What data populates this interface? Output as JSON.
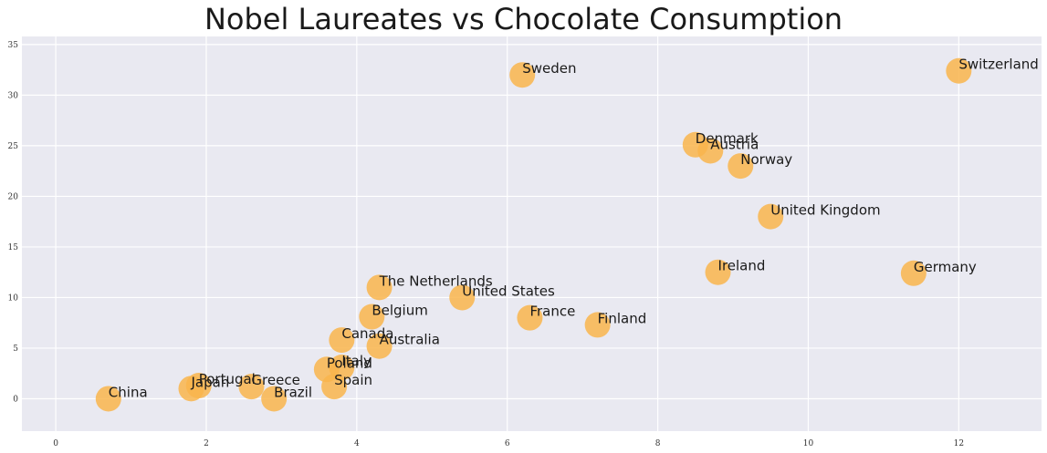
{
  "chart_data": {
    "type": "scatter",
    "title": "Nobel Laureates vs Chocolate Consumption",
    "xlabel": "",
    "ylabel": "",
    "xlim": [
      -0.45,
      13.1
    ],
    "ylim": [
      -3.2,
      35.8
    ],
    "xticks": [
      0,
      2,
      4,
      6,
      8,
      10,
      12
    ],
    "yticks": [
      0,
      5,
      10,
      15,
      20,
      25,
      30,
      35
    ],
    "grid": true,
    "marker_color": "#f9b54c",
    "background_color": "#e9e9f1",
    "grid_color": "#ffffff",
    "points": [
      {
        "label": "Switzerland",
        "x": 12.0,
        "y": 32.4
      },
      {
        "label": "Sweden",
        "x": 6.2,
        "y": 32.0
      },
      {
        "label": "Denmark",
        "x": 8.5,
        "y": 25.1
      },
      {
        "label": "Austria",
        "x": 8.7,
        "y": 24.5
      },
      {
        "label": "Norway",
        "x": 9.1,
        "y": 23.0
      },
      {
        "label": "United Kingdom",
        "x": 9.5,
        "y": 18.0
      },
      {
        "label": "Ireland",
        "x": 8.8,
        "y": 12.5
      },
      {
        "label": "Germany",
        "x": 11.4,
        "y": 12.4
      },
      {
        "label": "The Netherlands",
        "x": 4.3,
        "y": 11.0
      },
      {
        "label": "United States",
        "x": 5.4,
        "y": 10.0
      },
      {
        "label": "Belgium",
        "x": 4.2,
        "y": 8.1
      },
      {
        "label": "France",
        "x": 6.3,
        "y": 8.0
      },
      {
        "label": "Finland",
        "x": 7.2,
        "y": 7.3
      },
      {
        "label": "Canada",
        "x": 3.8,
        "y": 5.8
      },
      {
        "label": "Australia",
        "x": 4.3,
        "y": 5.2
      },
      {
        "label": "Italy",
        "x": 3.8,
        "y": 3.1
      },
      {
        "label": "Poland",
        "x": 3.6,
        "y": 2.9
      },
      {
        "label": "Spain",
        "x": 3.7,
        "y": 1.2
      },
      {
        "label": "Greece",
        "x": 2.6,
        "y": 1.2
      },
      {
        "label": "Portugal",
        "x": 1.9,
        "y": 1.3
      },
      {
        "label": "Japan",
        "x": 1.8,
        "y": 1.0
      },
      {
        "label": "Brazil",
        "x": 2.9,
        "y": 0.0
      },
      {
        "label": "China",
        "x": 0.7,
        "y": 0.0
      }
    ]
  }
}
